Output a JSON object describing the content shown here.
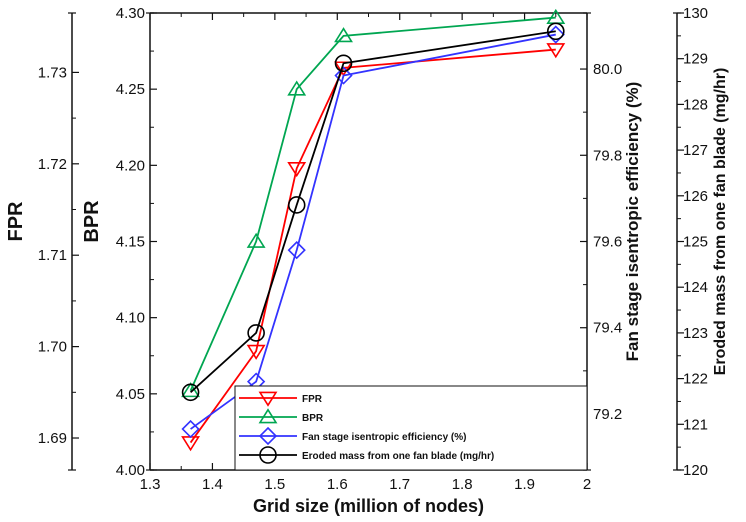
{
  "chart_data": {
    "type": "line",
    "xlabel": "Grid size (million of nodes)",
    "xlim": [
      1.3,
      2.0
    ],
    "x_ticks": [
      "1.3",
      "1.4",
      "1.5",
      "1.6",
      "1.7",
      "1.8",
      "1.9",
      "2"
    ],
    "x": [
      1.365,
      1.47,
      1.535,
      1.61,
      1.95
    ],
    "axes": {
      "fpr": {
        "label": "FPR",
        "ylim": [
          1.6865,
          1.7365
        ],
        "ticks": [
          "1.69",
          "1.70",
          "1.71",
          "1.72",
          "1.73"
        ],
        "tick_values": [
          1.69,
          1.7,
          1.71,
          1.72,
          1.73
        ]
      },
      "bpr": {
        "label": "BPR",
        "ylim": [
          4.0,
          4.3
        ],
        "ticks": [
          "4.00",
          "4.05",
          "4.10",
          "4.15",
          "4.20",
          "4.25",
          "4.30"
        ],
        "tick_values": [
          4.0,
          4.05,
          4.1,
          4.15,
          4.2,
          4.25,
          4.3
        ]
      },
      "eff": {
        "label": "Fan stage isentropic efficiency (%)",
        "ylim": [
          79.07,
          80.13
        ],
        "ticks": [
          "79.2",
          "79.4",
          "79.6",
          "79.8",
          "80.0"
        ],
        "tick_values": [
          79.2,
          79.4,
          79.6,
          79.8,
          80.0
        ]
      },
      "mass": {
        "label": "Eroded mass from one fan blade (mg/hr)",
        "ylim": [
          120,
          130
        ],
        "ticks": [
          "120",
          "121",
          "122",
          "123",
          "124",
          "125",
          "126",
          "127",
          "128",
          "129",
          "130"
        ],
        "tick_values": [
          120,
          121,
          122,
          123,
          124,
          125,
          126,
          127,
          128,
          129,
          130
        ]
      }
    },
    "series": [
      {
        "name": "FPR",
        "axis": "fpr",
        "color": "#ff0000",
        "marker": "triangle-down",
        "values": [
          1.6895,
          1.6995,
          1.7195,
          1.7305,
          1.7325
        ]
      },
      {
        "name": "BPR",
        "axis": "bpr",
        "color": "#00a651",
        "marker": "triangle-up",
        "values": [
          4.052,
          4.15,
          4.25,
          4.285,
          4.297
        ]
      },
      {
        "name": "Fan stage isentropic efficiency (%)",
        "axis": "eff",
        "color": "#3333ff",
        "marker": "diamond",
        "values": [
          79.165,
          79.275,
          79.58,
          79.985,
          80.08
        ]
      },
      {
        "name": "Eroded mass from one fan blade (mg/hr)",
        "axis": "mass",
        "color": "#000000",
        "marker": "circle",
        "values": [
          121.7,
          123.0,
          125.8,
          128.9,
          129.6
        ]
      }
    ],
    "legend_position": "bottom-right",
    "grid": false
  }
}
